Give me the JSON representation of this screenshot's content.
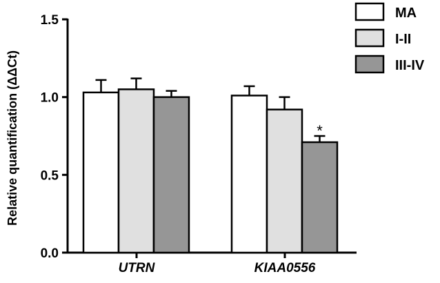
{
  "chart_data": {
    "type": "bar",
    "ylabel": "Relative quantification (ΔΔCt)",
    "xlabel": "",
    "ylim": [
      0,
      1.5
    ],
    "yticks": [
      "0.0",
      "0.5",
      "1.0",
      "1.5"
    ],
    "ytick_values": [
      0,
      0.5,
      1.0,
      1.5
    ],
    "categories": [
      "UTRN",
      "KIAA0556"
    ],
    "series": [
      {
        "name": "MA",
        "color": "#ffffff",
        "values": [
          1.03,
          1.01
        ],
        "errors": [
          0.08,
          0.06
        ]
      },
      {
        "name": "I-II",
        "color": "#e0e0e0",
        "values": [
          1.05,
          0.92
        ],
        "errors": [
          0.07,
          0.08
        ]
      },
      {
        "name": "III-IV",
        "color": "#969696",
        "values": [
          1.0,
          0.71
        ],
        "errors": [
          0.04,
          0.04
        ]
      }
    ],
    "annotations": [
      {
        "category": "KIAA0556",
        "series": "III-IV",
        "text": "*"
      }
    ],
    "legend_position": "top-right",
    "grid": false
  }
}
